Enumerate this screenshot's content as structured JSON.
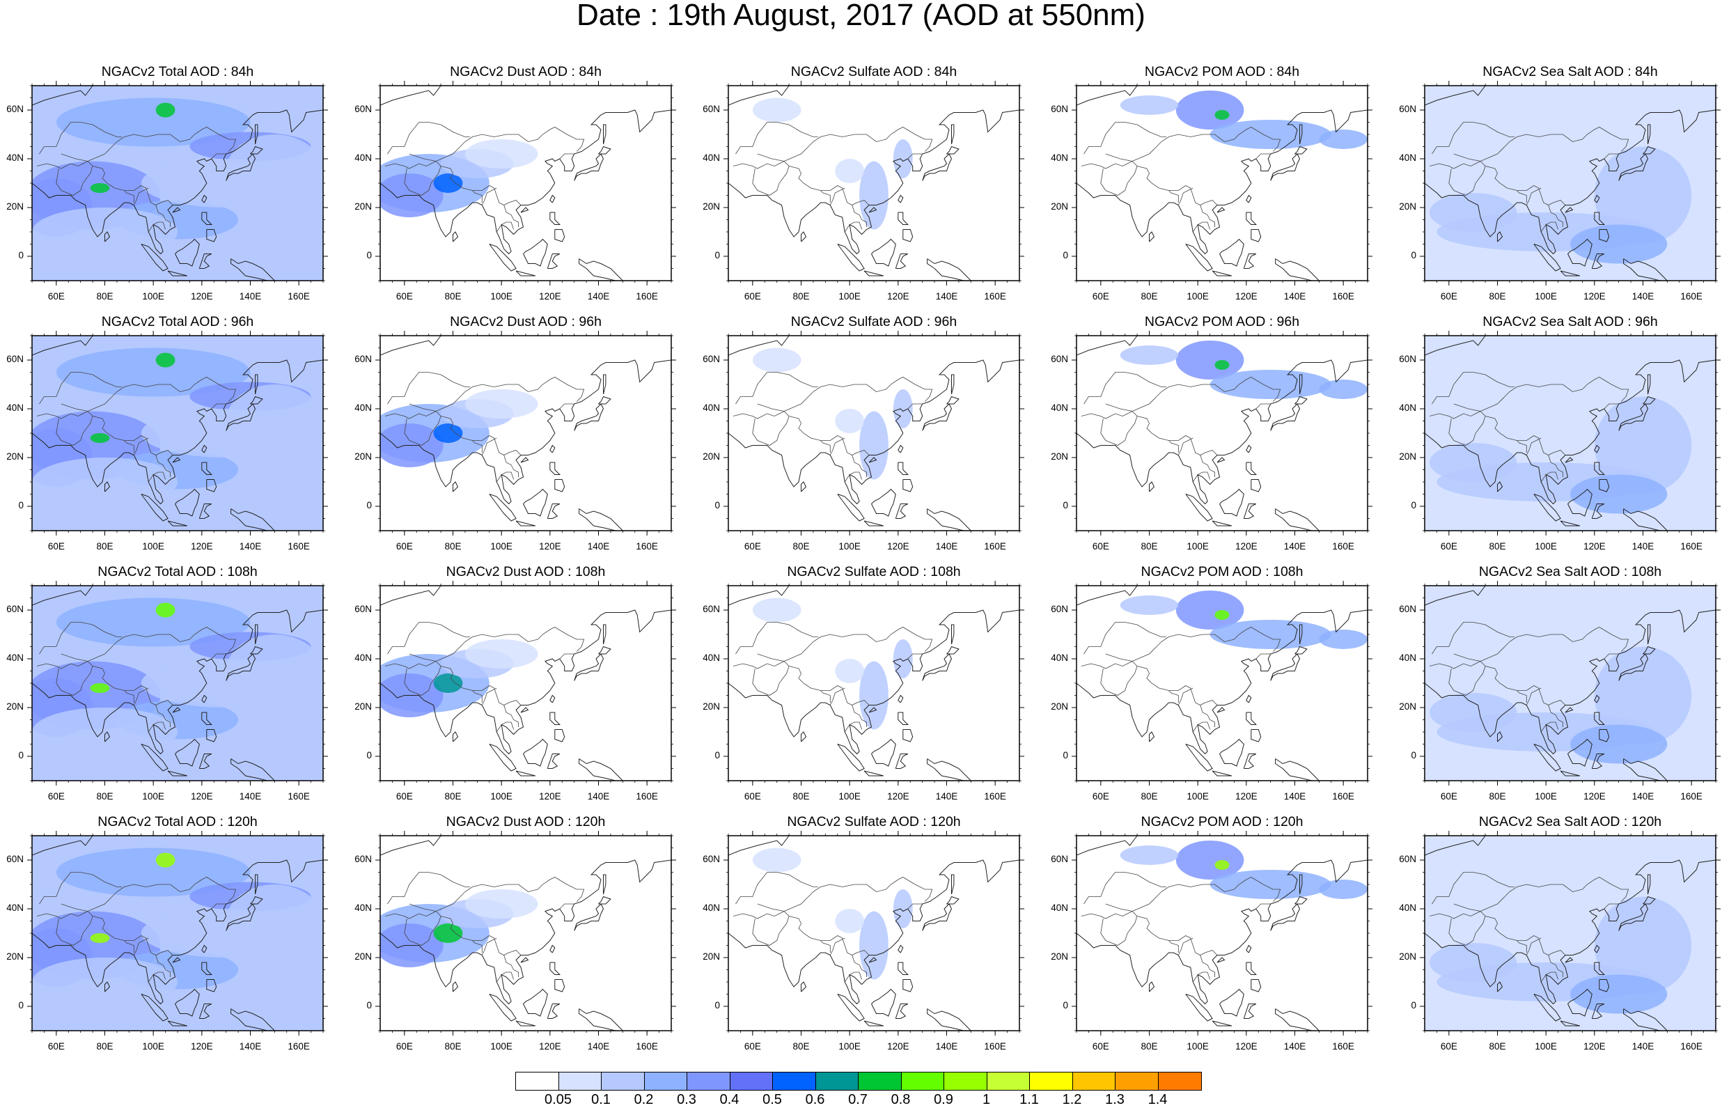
{
  "title": "Date : 19th August, 2017 (AOD at 550nm)",
  "panels": [
    [
      "NGACv2 Total AOD : 84h",
      "NGACv2 Dust AOD : 84h",
      "NGACv2 Sulfate AOD : 84h",
      "NGACv2 POM AOD : 84h",
      "NGACv2 Sea Salt AOD : 84h"
    ],
    [
      "NGACv2 Total AOD : 96h",
      "NGACv2 Dust AOD : 96h",
      "NGACv2 Sulfate AOD : 96h",
      "NGACv2 POM AOD : 96h",
      "NGACv2 Sea Salt AOD : 96h"
    ],
    [
      "NGACv2 Total AOD : 108h",
      "NGACv2 Dust AOD : 108h",
      "NGACv2 Sulfate AOD : 108h",
      "NGACv2 POM AOD : 108h",
      "NGACv2 Sea Salt AOD : 108h"
    ],
    [
      "NGACv2 Total AOD : 120h",
      "NGACv2 Dust AOD : 120h",
      "NGACv2 Sulfate AOD : 120h",
      "NGACv2 POM AOD : 120h",
      "NGACv2 Sea Salt  AOD : 120h"
    ]
  ],
  "axes": {
    "lat_ticks": [
      "60N",
      "40N",
      "20N",
      "0"
    ],
    "lon_ticks": [
      "60E",
      "80E",
      "100E",
      "120E",
      "140E",
      "160E"
    ],
    "lat_range": [
      -10,
      70
    ],
    "lon_range": [
      50,
      170
    ]
  },
  "colorbar": {
    "colors": [
      "#ffffff",
      "#d6e2ff",
      "#b5c9ff",
      "#8eb2ff",
      "#7f96ff",
      "#6370f8",
      "#0063ff",
      "#009696",
      "#00c633",
      "#63ff00",
      "#96ff00",
      "#c6ff33",
      "#ffff00",
      "#ffc600",
      "#ffa000",
      "#ff7c00",
      "#ff1900"
    ],
    "labels": [
      "0.05",
      "0.1",
      "0.2",
      "0.3",
      "0.4",
      "0.5",
      "0.6",
      "0.7",
      "0.8",
      "0.9",
      "1",
      "1.1",
      "1.2",
      "1.3",
      "1.4"
    ]
  },
  "chart_data": {
    "type": "heatmap",
    "title": "Date : 19th August, 2017 (AOD at 550nm)",
    "variables": [
      "Total AOD",
      "Dust AOD",
      "Sulfate AOD",
      "POM AOD",
      "Sea Salt AOD"
    ],
    "forecast_hours": [
      "84h",
      "96h",
      "108h",
      "120h"
    ],
    "region": {
      "lon": [
        50,
        170
      ],
      "lat": [
        -10,
        70
      ]
    },
    "colorbar_levels": [
      0.05,
      0.1,
      0.2,
      0.3,
      0.4,
      0.5,
      0.6,
      0.7,
      0.8,
      0.9,
      1,
      1.1,
      1.2,
      1.3,
      1.4
    ]
  }
}
